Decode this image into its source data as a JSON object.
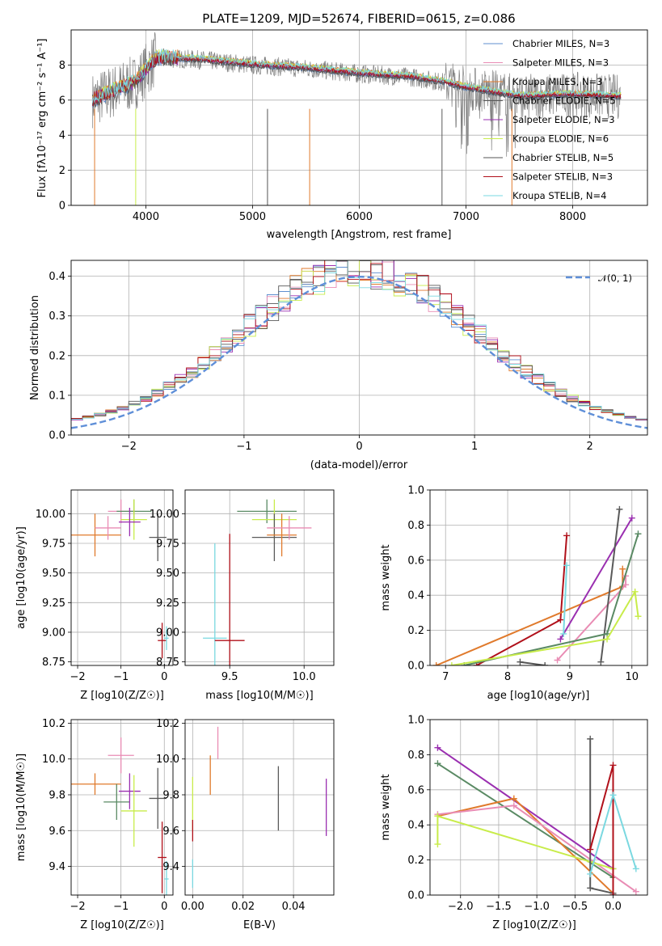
{
  "title": "PLATE=1209, MJD=52674, FIBERID=0615, z=0.086",
  "colors": {
    "chabrier_miles": "#5f8fcf",
    "salpeter_miles": "#e98cb4",
    "kroupa_miles": "#e07a2c",
    "chabrier_elodie": "#5a5a5a",
    "salpeter_elodie": "#9a2fb0",
    "kroupa_elodie": "#c8ec4a",
    "chabrier_stelib": "#555555",
    "salpeter_stelib": "#b0101a",
    "kroupa_stelib": "#7ad8e0",
    "gaussian": "#5f8fd8",
    "data": "#808080",
    "green": "#5a8a64"
  },
  "chart_data": [
    {
      "type": "line",
      "xlabel": "wavelength [Angstrom, rest frame]",
      "ylabel": "Flux [fλ10⁻¹⁷ erg cm⁻² s⁻¹ A⁻¹]",
      "xlim": [
        3300,
        8700
      ],
      "ylim": [
        0,
        10
      ],
      "xticks": [
        "4000",
        "5000",
        "6000",
        "7000",
        "8000"
      ],
      "yticks": [
        "0",
        "2",
        "4",
        "6",
        "8"
      ],
      "legend_position": "upper right",
      "legend": [
        "Chabrier MILES, N_SSP=3",
        "Salpeter MILES, N_SSP=3",
        "Kroupa MILES, N_SSP=3",
        "Chabrier ELODIE, N_SSP=5",
        "Salpeter ELODIE, N_SSP=3",
        "Kroupa ELODIE, N_SSP=6",
        "Chabrier STELIB, N_SSP=5",
        "Salpeter STELIB, N_SSP=3",
        "Kroupa STELIB, N_SSP=4"
      ],
      "continuum": [
        [
          3500,
          6.0
        ],
        [
          3700,
          6.5
        ],
        [
          3900,
          7.0
        ],
        [
          4100,
          8.4
        ],
        [
          4500,
          8.3
        ],
        [
          5000,
          8.0
        ],
        [
          5500,
          7.8
        ],
        [
          6000,
          7.5
        ],
        [
          6500,
          7.3
        ],
        [
          6800,
          7.0
        ],
        [
          7000,
          6.7
        ],
        [
          7500,
          6.2
        ],
        [
          8000,
          6.3
        ],
        [
          8400,
          6.2
        ]
      ]
    },
    {
      "type": "line",
      "xlabel": "(data-model)/error",
      "ylabel": "Normed distribution",
      "xlim": [
        -2.5,
        2.5
      ],
      "ylim": [
        0,
        0.44
      ],
      "xticks": [
        "−2",
        "−1",
        "0",
        "1",
        "2"
      ],
      "yticks": [
        "0.0",
        "0.1",
        "0.2",
        "0.3",
        "0.4"
      ],
      "legend": "𝒩(0, 1)",
      "legend_position": "upper right",
      "series": [
        {
          "values_description_none": true
        }
      ]
    },
    {
      "type": "scatter",
      "xlabel": "Z [log10(Z/Z☉)]",
      "ylabel": "age  [log10(age/yr)]",
      "xlim": [
        -2.15,
        0.2
      ],
      "ylim": [
        8.72,
        10.2
      ],
      "xticks": [
        "−2",
        "−1",
        "0"
      ],
      "yticks": [
        "8.75",
        "9.00",
        "9.25",
        "9.50",
        "9.75",
        "10.00"
      ],
      "points": [
        {
          "x": -1.6,
          "y": 9.82,
          "xerr": 0.6,
          "yerr": 0.18,
          "c": "kroupa_miles"
        },
        {
          "x": -1.0,
          "y": 10.02,
          "xerr": 0.3,
          "yerr": 0.1,
          "c": "salpeter_miles"
        },
        {
          "x": -1.3,
          "y": 9.88,
          "xerr": 0.3,
          "yerr": 0.1,
          "c": "salpeter_miles"
        },
        {
          "x": -0.7,
          "y": 10.02,
          "xerr": 0.4,
          "yerr": 0.1,
          "c": "green"
        },
        {
          "x": -0.7,
          "y": 9.95,
          "xerr": 0.3,
          "yerr": 0.17,
          "c": "kroupa_elodie"
        },
        {
          "x": -0.8,
          "y": 9.93,
          "xerr": 0.25,
          "yerr": 0.12,
          "c": "salpeter_elodie"
        },
        {
          "x": -0.15,
          "y": 9.8,
          "xerr": 0.2,
          "yerr": 0.2,
          "c": "chabrier_elodie"
        },
        {
          "x": -0.05,
          "y": 8.93,
          "xerr": 0.1,
          "yerr": 0.15,
          "c": "salpeter_stelib"
        },
        {
          "x": 0.05,
          "y": 8.95,
          "xerr": 0.05,
          "yerr": 0.1,
          "c": "kroupa_stelib"
        }
      ]
    },
    {
      "type": "scatter",
      "xlabel": "mass [log10(M/M☉)]",
      "xlim": [
        9.2,
        10.2
      ],
      "ylim": [
        8.72,
        10.2
      ],
      "xticks": [
        "9.5",
        "10.0"
      ],
      "yticks": [
        "8.75",
        "9.00",
        "9.25",
        "9.50",
        "9.75",
        "10.00"
      ],
      "points": [
        {
          "x": 9.4,
          "y": 8.95,
          "xerr": 0.08,
          "yerr": 0.8,
          "c": "kroupa_stelib"
        },
        {
          "x": 9.5,
          "y": 8.93,
          "xerr": 0.1,
          "yerr": 0.9,
          "c": "salpeter_stelib"
        },
        {
          "x": 9.75,
          "y": 10.02,
          "xerr": 0.2,
          "yerr": 0.1,
          "c": "green"
        },
        {
          "x": 9.8,
          "y": 9.95,
          "xerr": 0.15,
          "yerr": 0.17,
          "c": "kroupa_elodie"
        },
        {
          "x": 9.8,
          "y": 9.8,
          "xerr": 0.15,
          "yerr": 0.2,
          "c": "chabrier_elodie"
        },
        {
          "x": 9.85,
          "y": 9.82,
          "xerr": 0.1,
          "yerr": 0.18,
          "c": "kroupa_miles"
        },
        {
          "x": 9.9,
          "y": 9.88,
          "xerr": 0.15,
          "yerr": 0.1,
          "c": "salpeter_miles"
        }
      ]
    },
    {
      "type": "line",
      "xlabel": "age  [log10(age/yr)]",
      "ylabel": "mass weight",
      "xlim": [
        6.75,
        10.25
      ],
      "ylim": [
        0,
        1.0
      ],
      "xticks": [
        "7",
        "8",
        "9",
        "10"
      ],
      "yticks": [
        "0.0",
        "0.2",
        "0.4",
        "0.6",
        "0.8",
        "1.0"
      ],
      "series": [
        {
          "c": "salpeter_stelib",
          "pts": [
            [
              7.5,
              0
            ],
            [
              8.85,
              0.26
            ],
            [
              8.95,
              0.74
            ]
          ]
        },
        {
          "c": "kroupa_miles",
          "pts": [
            [
              6.85,
              0
            ],
            [
              9.85,
              0.45
            ],
            [
              9.85,
              0.55
            ]
          ]
        },
        {
          "c": "salpeter_miles",
          "pts": [
            [
              8.8,
              0.03
            ],
            [
              9.9,
              0.46
            ],
            [
              9.9,
              0.51
            ]
          ]
        },
        {
          "c": "salpeter_elodie",
          "pts": [
            [
              8.85,
              0.15
            ],
            [
              10.0,
              0.84
            ]
          ]
        },
        {
          "c": "chabrier_elodie",
          "pts": [
            [
              9.5,
              0.02
            ],
            [
              9.8,
              0.89
            ]
          ]
        },
        {
          "c": "green",
          "pts": [
            [
              7.3,
              0
            ],
            [
              9.6,
              0.18
            ],
            [
              10.1,
              0.75
            ]
          ]
        },
        {
          "c": "kroupa_elodie",
          "pts": [
            [
              7.1,
              0
            ],
            [
              9.6,
              0.15
            ],
            [
              10.05,
              0.42
            ],
            [
              10.1,
              0.28
            ]
          ]
        },
        {
          "c": "kroupa_stelib",
          "pts": [
            [
              8.9,
              0.18
            ],
            [
              8.95,
              0.57
            ]
          ]
        },
        {
          "c": "chabrier_stelib",
          "pts": [
            [
              8.2,
              0.02
            ],
            [
              8.6,
              0
            ]
          ]
        }
      ]
    },
    {
      "type": "scatter",
      "xlabel": "Z [log10(Z/Z☉)]",
      "ylabel": "mass [log10(M/M☉)]",
      "xlim": [
        -2.15,
        0.2
      ],
      "ylim": [
        9.24,
        10.22
      ],
      "xticks": [
        "−2",
        "−1",
        "0"
      ],
      "yticks": [
        "9.4",
        "9.6",
        "9.8",
        "10.0",
        "10.2"
      ],
      "points": [
        {
          "x": -1.6,
          "y": 9.86,
          "xerr": 0.6,
          "yerr": 0.06,
          "c": "kroupa_miles"
        },
        {
          "x": -1.0,
          "y": 10.02,
          "xerr": 0.3,
          "yerr": 0.1,
          "c": "salpeter_miles"
        },
        {
          "x": -1.1,
          "y": 9.76,
          "xerr": 0.3,
          "yerr": 0.1,
          "c": "green"
        },
        {
          "x": -0.8,
          "y": 9.82,
          "xerr": 0.25,
          "yerr": 0.1,
          "c": "salpeter_elodie"
        },
        {
          "x": -0.7,
          "y": 9.71,
          "xerr": 0.3,
          "yerr": 0.2,
          "c": "kroupa_elodie"
        },
        {
          "x": -0.15,
          "y": 9.78,
          "xerr": 0.2,
          "yerr": 0.17,
          "c": "chabrier_elodie"
        },
        {
          "x": -0.05,
          "y": 9.45,
          "xerr": 0.1,
          "yerr": 0.2,
          "c": "salpeter_stelib"
        },
        {
          "x": 0.05,
          "y": 9.33,
          "xerr": 0.05,
          "yerr": 0.1,
          "c": "kroupa_stelib"
        }
      ]
    },
    {
      "type": "scatter",
      "xlabel": "E(B-V)",
      "xlim": [
        -0.003,
        0.056
      ],
      "ylim": [
        9.24,
        10.22
      ],
      "xticks": [
        "0.00",
        "0.02",
        "0.04"
      ],
      "yticks": [
        "9.4",
        "9.6",
        "9.8",
        "10.0",
        "10.2"
      ],
      "points": [
        {
          "x": 0.0,
          "y": 9.75,
          "xerr": 0,
          "yerr": 0.15,
          "c": "kroupa_elodie"
        },
        {
          "x": 0.0,
          "y": 9.6,
          "xerr": 0,
          "yerr": 0.06,
          "c": "salpeter_stelib"
        },
        {
          "x": 0.0,
          "y": 9.36,
          "xerr": 0,
          "yerr": 0.08,
          "c": "kroupa_stelib"
        },
        {
          "x": 0.007,
          "y": 9.91,
          "xerr": 0,
          "yerr": 0.11,
          "c": "kroupa_miles"
        },
        {
          "x": 0.01,
          "y": 10.09,
          "xerr": 0,
          "yerr": 0.09,
          "c": "salpeter_miles"
        },
        {
          "x": 0.034,
          "y": 9.78,
          "xerr": 0,
          "yerr": 0.18,
          "c": "chabrier_elodie"
        },
        {
          "x": 0.053,
          "y": 9.73,
          "xerr": 0,
          "yerr": 0.16,
          "c": "salpeter_elodie"
        }
      ]
    },
    {
      "type": "line",
      "xlabel": "Z [log10(Z/Z☉)]",
      "ylabel": "mass weight",
      "xlim": [
        -2.4,
        0.45
      ],
      "ylim": [
        0,
        1.0
      ],
      "xticks": [
        "−2.0",
        "−1.5",
        "−1.0",
        "−0.5",
        "0.0"
      ],
      "yticks": [
        "0.0",
        "0.2",
        "0.4",
        "0.6",
        "0.8",
        "1.0"
      ],
      "series": [
        {
          "c": "salpeter_elodie",
          "pts": [
            [
              -2.3,
              0.84
            ],
            [
              0,
              0.15
            ]
          ]
        },
        {
          "c": "green",
          "pts": [
            [
              -2.3,
              0.75
            ],
            [
              0,
              0.1
            ]
          ]
        },
        {
          "c": "kroupa_miles",
          "pts": [
            [
              -2.3,
              0.45
            ],
            [
              -1.3,
              0.55
            ],
            [
              0,
              0.01
            ]
          ]
        },
        {
          "c": "salpeter_miles",
          "pts": [
            [
              -2.3,
              0.46
            ],
            [
              -1.3,
              0.51
            ],
            [
              0.3,
              0.02
            ]
          ]
        },
        {
          "c": "kroupa_elodie",
          "pts": [
            [
              -2.3,
              0.29
            ],
            [
              -2.3,
              0.45
            ],
            [
              -0.3,
              0.19
            ],
            [
              0,
              0.15
            ]
          ]
        },
        {
          "c": "chabrier_elodie",
          "pts": [
            [
              -0.3,
              0.89
            ],
            [
              -0.3,
              0.04
            ],
            [
              0,
              0.01
            ]
          ]
        },
        {
          "c": "salpeter_stelib",
          "pts": [
            [
              -0.3,
              0.26
            ],
            [
              0,
              0.74
            ],
            [
              0,
              0
            ]
          ]
        },
        {
          "c": "kroupa_stelib",
          "pts": [
            [
              -0.3,
              0.12
            ],
            [
              0,
              0.57
            ],
            [
              0.3,
              0.15
            ]
          ]
        }
      ]
    }
  ]
}
